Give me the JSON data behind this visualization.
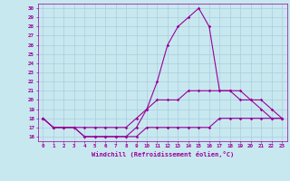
{
  "x": [
    0,
    1,
    2,
    3,
    4,
    5,
    6,
    7,
    8,
    9,
    10,
    11,
    12,
    13,
    14,
    15,
    16,
    17,
    18,
    19,
    20,
    21,
    22,
    23
  ],
  "line1": [
    18,
    17,
    17,
    17,
    16,
    16,
    16,
    16,
    16,
    17,
    19,
    22,
    26,
    28,
    29,
    30,
    28,
    21,
    21,
    20,
    20,
    19,
    18,
    18
  ],
  "line2": [
    18,
    17,
    17,
    17,
    17,
    17,
    17,
    17,
    17,
    18,
    19,
    20,
    20,
    20,
    21,
    21,
    21,
    21,
    21,
    21,
    20,
    20,
    19,
    18
  ],
  "line3": [
    18,
    17,
    17,
    17,
    16,
    16,
    16,
    16,
    16,
    16,
    17,
    17,
    17,
    17,
    17,
    17,
    17,
    18,
    18,
    18,
    18,
    18,
    18,
    18
  ],
  "line_color": "#990099",
  "background_color": "#c8e8f0",
  "grid_color": "#aaccdd",
  "xlabel": "Windchill (Refroidissement éolien,°C)",
  "xtick_labels": [
    "0",
    "1",
    "2",
    "3",
    "4",
    "5",
    "6",
    "7",
    "8",
    "9",
    "10",
    "11",
    "12",
    "13",
    "14",
    "15",
    "16",
    "17",
    "18",
    "19",
    "20",
    "21",
    "22",
    "23"
  ],
  "ylim": [
    15.5,
    30.5
  ],
  "xlim": [
    -0.5,
    23.5
  ],
  "yticks": [
    16,
    17,
    18,
    19,
    20,
    21,
    22,
    23,
    24,
    25,
    26,
    27,
    28,
    29,
    30
  ],
  "marker_size": 1.8,
  "line_width": 0.8,
  "tick_fontsize": 4.2,
  "xlabel_fontsize": 5.0
}
